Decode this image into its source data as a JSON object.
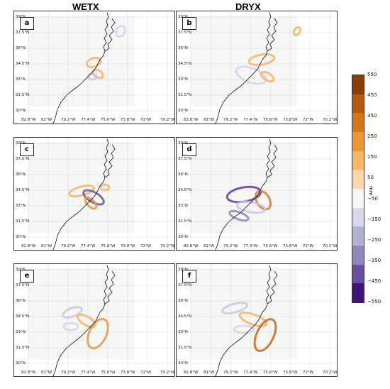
{
  "columns": {
    "left": "WETX",
    "right": "DRYX"
  },
  "panels": [
    {
      "label": "a"
    },
    {
      "label": "b"
    },
    {
      "label": "c"
    },
    {
      "label": "d"
    },
    {
      "label": "e"
    },
    {
      "label": "f"
    }
  ],
  "lat_labels": [
    "39°N",
    "37.5°N",
    "36°N",
    "34.5°N",
    "33°N",
    "31.5°N",
    "30°N"
  ],
  "lon_labels": [
    "82.8°W",
    "81°W",
    "79.2°W",
    "77.4°W",
    "75.6°W",
    "73.8°W",
    "72°W",
    "70.2°W"
  ],
  "colorbar": {
    "unit": "mm",
    "ticks": [
      "550",
      "450",
      "350",
      "250",
      "150",
      "50",
      "−50",
      "−150",
      "−250",
      "−350",
      "−450",
      "−550"
    ],
    "colors": [
      "#8a3d06",
      "#b85a0c",
      "#d6761a",
      "#ee9634",
      "#f8b767",
      "#fcd6a8",
      "#f7f7f7",
      "#d8d8ec",
      "#b3b0d6",
      "#8f87be",
      "#6a4fa0",
      "#40117a"
    ]
  }
}
